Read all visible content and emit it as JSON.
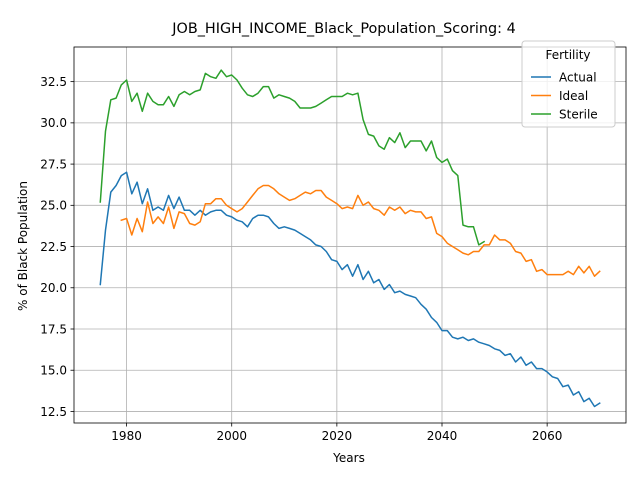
{
  "chart_data": {
    "type": "line",
    "title": "JOB_HIGH_INCOME_Black_Population_Scoring: 4",
    "xlabel": "Years",
    "ylabel": "% of Black Population",
    "xlim": [
      1970,
      2075
    ],
    "ylim": [
      11.8,
      34.6
    ],
    "xticks": [
      1980,
      2000,
      2020,
      2040,
      2060
    ],
    "yticks": [
      12.5,
      15.0,
      17.5,
      20.0,
      22.5,
      25.0,
      27.5,
      30.0,
      32.5
    ],
    "grid": true,
    "legend": {
      "title": "Fertility",
      "placement": "top-right"
    },
    "series": [
      {
        "name": "Actual",
        "color": "#1f77b4",
        "x": [
          1975,
          1976,
          1977,
          1978,
          1979,
          1980,
          1981,
          1982,
          1983,
          1984,
          1985,
          1986,
          1987,
          1988,
          1989,
          1990,
          1991,
          1992,
          1993,
          1994,
          1995,
          1996,
          1997,
          1998,
          1999,
          2000,
          2001,
          2002,
          2003,
          2004,
          2005,
          2006,
          2007,
          2008,
          2009,
          2010,
          2011,
          2012,
          2013,
          2014,
          2015,
          2016,
          2017,
          2018,
          2019,
          2020,
          2021,
          2022,
          2023,
          2024,
          2025,
          2026,
          2027,
          2028,
          2029,
          2030,
          2031,
          2032,
          2033,
          2034,
          2035,
          2036,
          2037,
          2038,
          2039,
          2040,
          2041,
          2042,
          2043,
          2044,
          2045,
          2046,
          2047,
          2048,
          2049,
          2050,
          2051,
          2052,
          2053,
          2054,
          2055,
          2056,
          2057,
          2058,
          2059,
          2060,
          2061,
          2062,
          2063,
          2064,
          2065,
          2066,
          2067,
          2068,
          2069,
          2070
        ],
        "y": [
          20.2,
          23.5,
          25.8,
          26.2,
          26.8,
          27.0,
          25.7,
          26.4,
          25.1,
          26.0,
          24.7,
          24.9,
          24.7,
          25.6,
          24.8,
          25.5,
          24.7,
          24.7,
          24.4,
          24.7,
          24.4,
          24.6,
          24.7,
          24.7,
          24.4,
          24.3,
          24.1,
          24.0,
          23.7,
          24.2,
          24.4,
          24.4,
          24.3,
          23.9,
          23.6,
          23.7,
          23.6,
          23.5,
          23.3,
          23.1,
          22.9,
          22.6,
          22.5,
          22.2,
          21.7,
          21.6,
          21.1,
          21.4,
          20.7,
          21.4,
          20.5,
          21.0,
          20.3,
          20.5,
          19.9,
          20.2,
          19.7,
          19.8,
          19.6,
          19.5,
          19.4,
          19.0,
          18.7,
          18.2,
          17.9,
          17.4,
          17.4,
          17.0,
          16.9,
          17.0,
          16.8,
          16.9,
          16.7,
          16.6,
          16.5,
          16.3,
          16.2,
          15.9,
          16.0,
          15.5,
          15.8,
          15.3,
          15.5,
          15.1,
          15.1,
          14.9,
          14.6,
          14.5,
          14.0,
          14.1,
          13.5,
          13.7,
          13.1,
          13.3,
          12.8,
          13.0
        ]
      },
      {
        "name": "Ideal",
        "color": "#ff7f0e",
        "x": [
          1979,
          1980,
          1981,
          1982,
          1983,
          1984,
          1985,
          1986,
          1987,
          1988,
          1989,
          1990,
          1991,
          1992,
          1993,
          1994,
          1995,
          1996,
          1997,
          1998,
          1999,
          2000,
          2001,
          2002,
          2003,
          2004,
          2005,
          2006,
          2007,
          2008,
          2009,
          2010,
          2011,
          2012,
          2013,
          2014,
          2015,
          2016,
          2017,
          2018,
          2019,
          2020,
          2021,
          2022,
          2023,
          2024,
          2025,
          2026,
          2027,
          2028,
          2029,
          2030,
          2031,
          2032,
          2033,
          2034,
          2035,
          2036,
          2037,
          2038,
          2039,
          2040,
          2041,
          2042,
          2043,
          2044,
          2045,
          2046,
          2047,
          2048,
          2049,
          2050,
          2051,
          2052,
          2053,
          2054,
          2055,
          2056,
          2057,
          2058,
          2059,
          2060,
          2061,
          2062,
          2063,
          2064,
          2065,
          2066,
          2067,
          2068,
          2069,
          2070
        ],
        "y": [
          24.1,
          24.2,
          23.2,
          24.2,
          23.4,
          25.2,
          23.9,
          24.3,
          23.9,
          24.9,
          23.6,
          24.6,
          24.5,
          23.9,
          23.8,
          24.0,
          25.1,
          25.1,
          25.4,
          25.4,
          25.0,
          24.8,
          24.6,
          24.8,
          25.2,
          25.6,
          26.0,
          26.2,
          26.2,
          26.0,
          25.7,
          25.5,
          25.3,
          25.4,
          25.6,
          25.8,
          25.7,
          25.9,
          25.9,
          25.5,
          25.3,
          25.1,
          24.8,
          24.9,
          24.8,
          25.6,
          25.0,
          25.2,
          24.8,
          24.7,
          24.4,
          24.9,
          24.7,
          24.9,
          24.5,
          24.7,
          24.6,
          24.6,
          24.2,
          24.3,
          23.3,
          23.1,
          22.7,
          22.5,
          22.3,
          22.1,
          22.0,
          22.2,
          22.2,
          22.6,
          22.6,
          23.2,
          22.9,
          22.9,
          22.7,
          22.2,
          22.1,
          21.6,
          21.7,
          21.0,
          21.1,
          20.8,
          20.8,
          20.8,
          20.8,
          21.0,
          20.8,
          21.3,
          20.9,
          21.3,
          20.7,
          21.0
        ]
      },
      {
        "name": "Sterile",
        "color": "#2ca02c",
        "x": [
          1975,
          1976,
          1977,
          1978,
          1979,
          1980,
          1981,
          1982,
          1983,
          1984,
          1985,
          1986,
          1987,
          1988,
          1989,
          1990,
          1991,
          1992,
          1993,
          1994,
          1995,
          1996,
          1997,
          1998,
          1999,
          2000,
          2001,
          2002,
          2003,
          2004,
          2005,
          2006,
          2007,
          2008,
          2009,
          2010,
          2011,
          2012,
          2013,
          2014,
          2015,
          2016,
          2017,
          2018,
          2019,
          2020,
          2021,
          2022,
          2023,
          2024,
          2025,
          2026,
          2027,
          2028,
          2029,
          2030,
          2031,
          2032,
          2033,
          2034,
          2035,
          2036,
          2037,
          2038,
          2039,
          2040,
          2041,
          2042,
          2043,
          2044,
          2045,
          2046,
          2047,
          2048
        ],
        "y": [
          25.2,
          29.5,
          31.4,
          31.5,
          32.3,
          32.6,
          31.3,
          31.8,
          30.7,
          31.8,
          31.3,
          31.1,
          31.1,
          31.6,
          31.0,
          31.7,
          31.9,
          31.7,
          31.9,
          32.0,
          33.0,
          32.8,
          32.7,
          33.2,
          32.8,
          32.9,
          32.6,
          32.1,
          31.7,
          31.6,
          31.8,
          32.2,
          32.2,
          31.5,
          31.7,
          31.6,
          31.5,
          31.3,
          30.9,
          30.9,
          30.9,
          31.0,
          31.2,
          31.4,
          31.6,
          31.6,
          31.6,
          31.8,
          31.7,
          31.8,
          30.2,
          29.3,
          29.2,
          28.6,
          28.4,
          29.1,
          28.8,
          29.4,
          28.5,
          28.9,
          28.9,
          28.9,
          28.3,
          28.9,
          27.9,
          27.6,
          27.8,
          27.1,
          26.8,
          23.8,
          23.7,
          23.7,
          22.6,
          22.8
        ]
      }
    ]
  }
}
